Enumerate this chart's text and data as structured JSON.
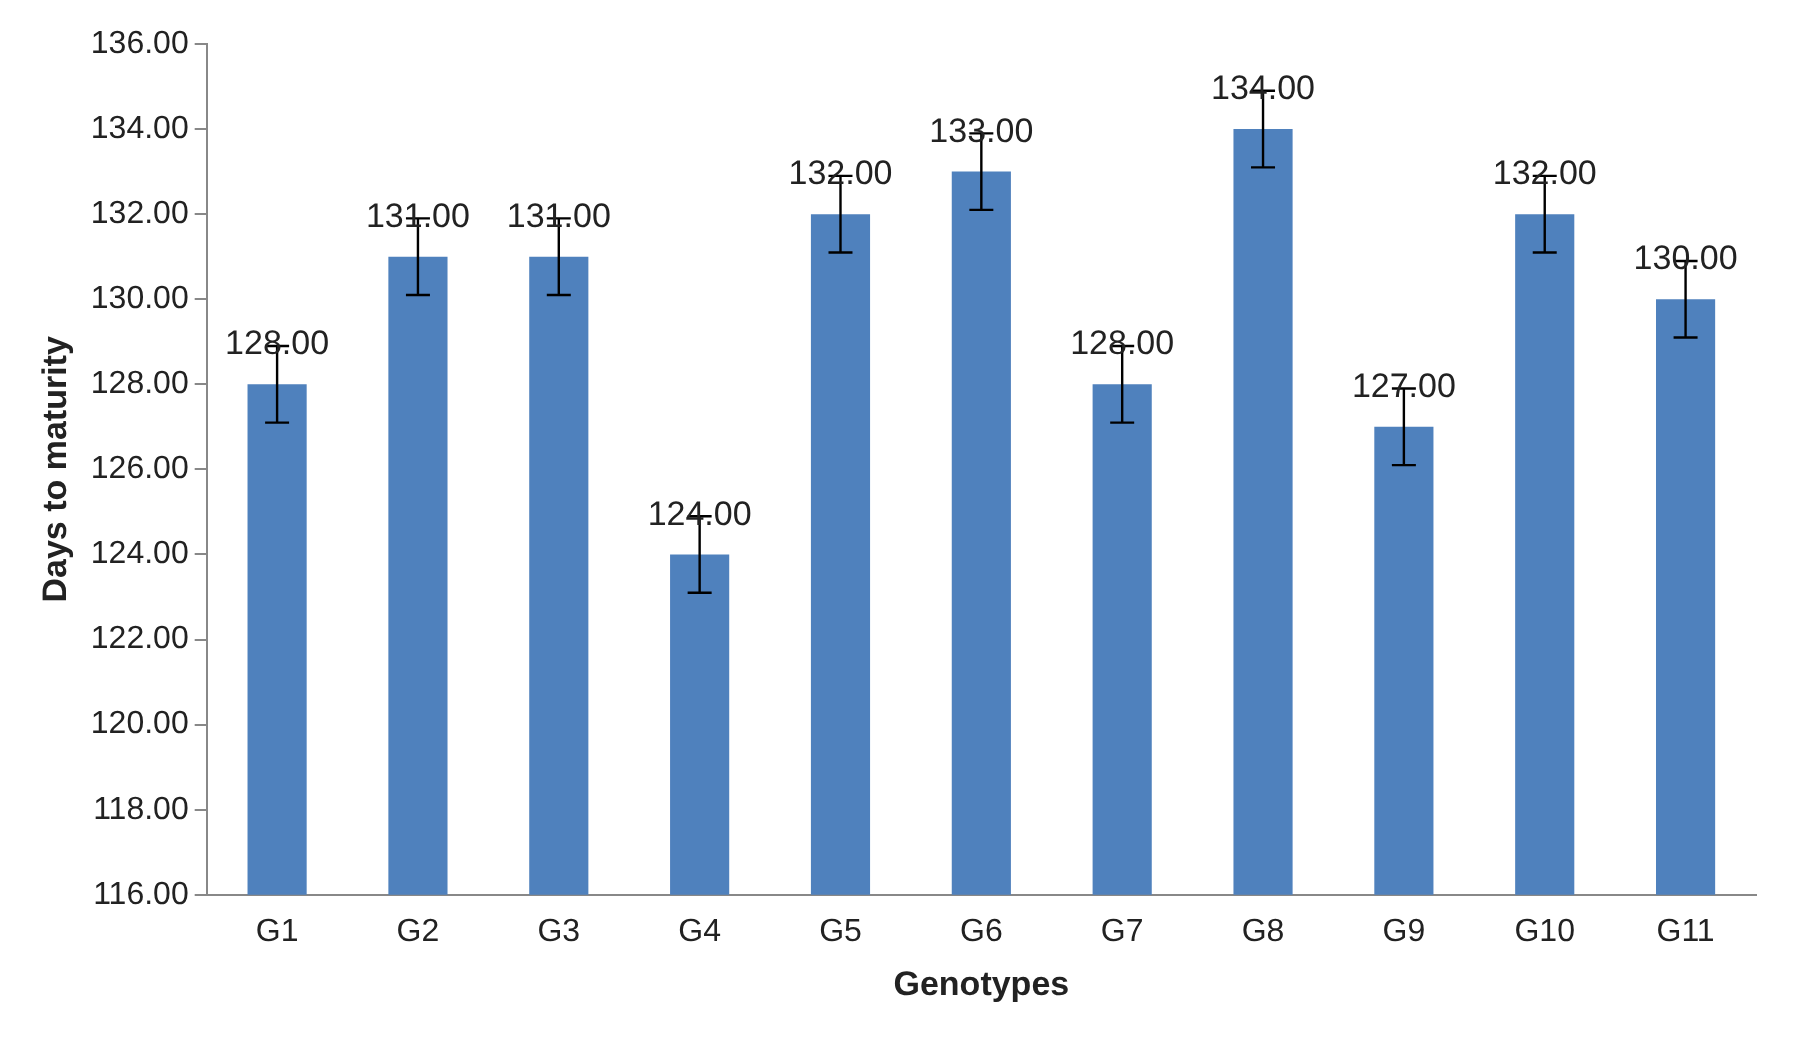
{
  "chart_data": {
    "type": "bar",
    "xlabel": "Genotypes",
    "ylabel": "Days to maturity",
    "categories": [
      "G1",
      "G2",
      "G3",
      "G4",
      "G5",
      "G6",
      "G7",
      "G8",
      "G9",
      "G10",
      "G11"
    ],
    "values": [
      128,
      131,
      131,
      124,
      132,
      133,
      128,
      134,
      127,
      132,
      130
    ],
    "errors": [
      0.9,
      0.9,
      0.9,
      0.9,
      0.9,
      0.9,
      0.9,
      0.9,
      0.9,
      0.9,
      0.9
    ],
    "value_labels": [
      "128.00",
      "131.00",
      "131.00",
      "124.00",
      "132.00",
      "133.00",
      "128.00",
      "134.00",
      "127.00",
      "132.00",
      "130.00"
    ],
    "color": "#4f81bd",
    "ylim": [
      116,
      136
    ],
    "yticks": [
      {
        "value": 116,
        "label": "116.00"
      },
      {
        "value": 118,
        "label": "118.00"
      },
      {
        "value": 120,
        "label": "120.00"
      },
      {
        "value": 122,
        "label": "122.00"
      },
      {
        "value": 124,
        "label": "124.00"
      },
      {
        "value": 126,
        "label": "126.00"
      },
      {
        "value": 128,
        "label": "128.00"
      },
      {
        "value": 130,
        "label": "130.00"
      },
      {
        "value": 132,
        "label": "132.00"
      },
      {
        "value": 134,
        "label": "134.00"
      },
      {
        "value": 136,
        "label": "136.00"
      }
    ],
    "grid": false,
    "legend": false
  }
}
